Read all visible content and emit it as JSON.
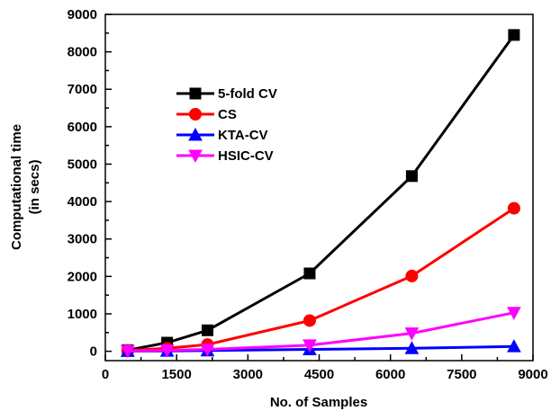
{
  "chart_data": {
    "type": "line",
    "xlabel": "No. of Samples",
    "ylabel_lines": [
      "Computational time",
      "(in secs)"
    ],
    "xlim": [
      0,
      9000
    ],
    "ylim": [
      -250,
      9000
    ],
    "xticks": [
      0,
      1500,
      3000,
      4500,
      6000,
      7500,
      9000
    ],
    "yticks": [
      0,
      1000,
      2000,
      3000,
      4000,
      5000,
      6000,
      7000,
      8000,
      9000
    ],
    "grid": false,
    "legend_position": "upper-left",
    "x": [
      470,
      1300,
      2150,
      4300,
      6450,
      8600
    ],
    "series": [
      {
        "name": "5-fold CV",
        "color": "#000000",
        "marker": "square",
        "values": [
          30,
          230,
          560,
          2080,
          4680,
          8450
        ]
      },
      {
        "name": "CS",
        "color": "#ff0000",
        "marker": "circle",
        "values": [
          20,
          80,
          180,
          820,
          2010,
          3820
        ]
      },
      {
        "name": "KTA-CV",
        "color": "#0000ff",
        "marker": "triangle-up",
        "values": [
          5,
          10,
          20,
          50,
          80,
          130
        ]
      },
      {
        "name": "HSIC-CV",
        "color": "#ff00ff",
        "marker": "triangle-down",
        "values": [
          10,
          25,
          50,
          160,
          480,
          1030
        ]
      }
    ]
  }
}
